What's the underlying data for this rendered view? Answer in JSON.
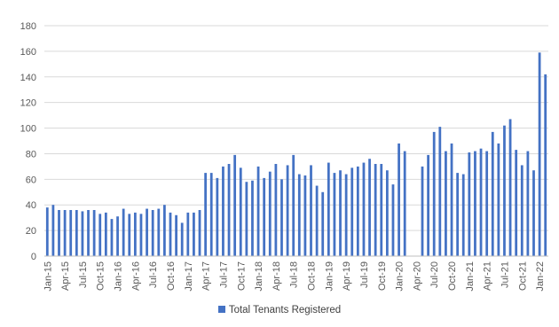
{
  "colors": {
    "bar": "#4472C4",
    "grid": "#d9d9d9",
    "axis": "#bfbfbf",
    "text": "#595959"
  },
  "chart_data": {
    "type": "bar",
    "title": "",
    "xlabel": "",
    "ylabel": "",
    "ylim": [
      0,
      180
    ],
    "yticks": [
      0,
      20,
      40,
      60,
      80,
      100,
      120,
      140,
      160,
      180
    ],
    "grid": true,
    "legend_position": "bottom",
    "x_tick_labels": [
      "Jan-15",
      "Apr-15",
      "Jul-15",
      "Oct-15",
      "Jan-16",
      "Apr-16",
      "Jul-16",
      "Oct-16",
      "Jan-17",
      "Apr-17",
      "Jul-17",
      "Oct-17",
      "Jan-18",
      "Apr-18",
      "Jul-18",
      "Oct-18",
      "Jan-19",
      "Apr-19",
      "Jul-19",
      "Oct-19",
      "Jan-20",
      "Apr-20",
      "Jul-20",
      "Oct-20",
      "Jan-21",
      "Apr-21",
      "Jul-21",
      "Oct-21",
      "Jan-22"
    ],
    "categories": [
      "Jan-15",
      "Feb-15",
      "Mar-15",
      "Apr-15",
      "May-15",
      "Jun-15",
      "Jul-15",
      "Aug-15",
      "Sep-15",
      "Oct-15",
      "Nov-15",
      "Dec-15",
      "Jan-16",
      "Feb-16",
      "Mar-16",
      "Apr-16",
      "May-16",
      "Jun-16",
      "Jul-16",
      "Aug-16",
      "Sep-16",
      "Oct-16",
      "Nov-16",
      "Dec-16",
      "Jan-17",
      "Feb-17",
      "Mar-17",
      "Apr-17",
      "May-17",
      "Jun-17",
      "Jul-17",
      "Aug-17",
      "Sep-17",
      "Oct-17",
      "Nov-17",
      "Dec-17",
      "Jan-18",
      "Feb-18",
      "Mar-18",
      "Apr-18",
      "May-18",
      "Jun-18",
      "Jul-18",
      "Aug-18",
      "Sep-18",
      "Oct-18",
      "Nov-18",
      "Dec-18",
      "Jan-19",
      "Feb-19",
      "Mar-19",
      "Apr-19",
      "May-19",
      "Jun-19",
      "Jul-19",
      "Aug-19",
      "Sep-19",
      "Oct-19",
      "Nov-19",
      "Dec-19",
      "Jan-20",
      "Feb-20",
      "Mar-20",
      "Apr-20",
      "May-20",
      "Jun-20",
      "Jul-20",
      "Aug-20",
      "Sep-20",
      "Oct-20",
      "Nov-20",
      "Dec-20",
      "Jan-21",
      "Feb-21",
      "Mar-21",
      "Apr-21",
      "May-21",
      "Jun-21",
      "Jul-21",
      "Aug-21",
      "Sep-21",
      "Oct-21",
      "Nov-21",
      "Dec-21",
      "Jan-22",
      "Feb-22"
    ],
    "series": [
      {
        "name": "Total Tenants Registered",
        "values": [
          38,
          40,
          36,
          36,
          36,
          36,
          35,
          36,
          36,
          33,
          34,
          29,
          31,
          37,
          33,
          34,
          33,
          37,
          36,
          37,
          40,
          34,
          32,
          26,
          34,
          34,
          36,
          65,
          65,
          61,
          70,
          72,
          79,
          69,
          58,
          59,
          70,
          61,
          66,
          72,
          60,
          71,
          79,
          64,
          63,
          71,
          55,
          50,
          73,
          65,
          67,
          64,
          69,
          70,
          73,
          76,
          72,
          72,
          67,
          56,
          88,
          82,
          0,
          0,
          70,
          79,
          97,
          101,
          82,
          88,
          65,
          64,
          81,
          82,
          84,
          82,
          97,
          88,
          102,
          107,
          83,
          71,
          82,
          67,
          159,
          142
        ]
      }
    ]
  }
}
